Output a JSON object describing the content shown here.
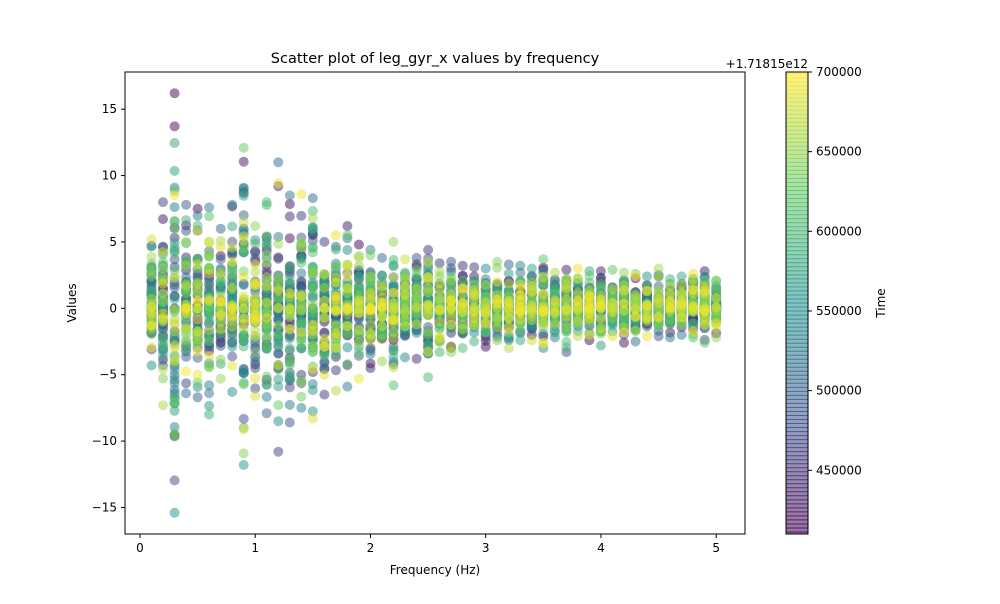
{
  "chart_data": {
    "type": "scatter",
    "title": "Scatter plot of leg_gyr_x values by frequency",
    "xlabel": "Frequency (Hz)",
    "ylabel": "Values",
    "xlim": [
      -0.13,
      5.25
    ],
    "ylim": [
      -17,
      17.8
    ],
    "x_ticks": [
      0,
      1,
      2,
      3,
      4,
      5
    ],
    "x_tick_labels": [
      "0",
      "1",
      "2",
      "3",
      "4",
      "5"
    ],
    "y_ticks": [
      -15,
      -10,
      -5,
      0,
      5,
      10,
      15
    ],
    "y_tick_labels": [
      "−15",
      "−10",
      "−5",
      "0",
      "5",
      "10",
      "15"
    ],
    "colorbar": {
      "label": "Time",
      "offset_text": "+1.71815e12",
      "range": [
        410000,
        700000
      ],
      "ticks": [
        450000,
        500000,
        550000,
        600000,
        650000,
        700000
      ],
      "tick_labels": [
        "450000",
        "500000",
        "550000",
        "600000",
        "650000",
        "700000"
      ],
      "colormap": "viridis",
      "alpha": 0.5
    },
    "grid": false,
    "frequencies": [
      0.1,
      0.2,
      0.3,
      0.4,
      0.5,
      0.6,
      0.7,
      0.8,
      0.9,
      1.0,
      1.1,
      1.2,
      1.3,
      1.4,
      1.5,
      1.6,
      1.7,
      1.8,
      1.9,
      2.0,
      2.1,
      2.2,
      2.3,
      2.4,
      2.5,
      2.6,
      2.7,
      2.8,
      2.9,
      3.0,
      3.1,
      3.2,
      3.3,
      3.4,
      3.5,
      3.6,
      3.7,
      3.8,
      3.9,
      4.0,
      4.1,
      4.2,
      4.3,
      4.4,
      4.5,
      4.6,
      4.7,
      4.8,
      4.9,
      5.0
    ],
    "value_max": [
      5.2,
      8.0,
      16.2,
      7.8,
      7.5,
      7.6,
      6.0,
      7.8,
      12.1,
      6.2,
      8.0,
      11.0,
      8.5,
      8.6,
      8.3,
      5.0,
      5.5,
      6.2,
      4.8,
      4.4,
      3.8,
      5.0,
      3.7,
      3.8,
      4.4,
      3.4,
      3.5,
      3.2,
      3.1,
      3.0,
      3.5,
      3.3,
      3.2,
      3.0,
      3.7,
      2.7,
      2.9,
      3.0,
      2.8,
      2.8,
      2.9,
      2.7,
      2.6,
      2.4,
      3.0,
      2.2,
      2.4,
      2.6,
      2.8,
      2.1
    ],
    "value_min": [
      -4.3,
      -7.3,
      -15.4,
      -6.4,
      -6.7,
      -8.0,
      -5.3,
      -6.3,
      -11.8,
      -6.6,
      -7.9,
      -10.8,
      -8.6,
      -7.5,
      -8.3,
      -6.5,
      -6.2,
      -5.9,
      -5.3,
      -4.5,
      -4.0,
      -5.8,
      -3.7,
      -3.8,
      -5.2,
      -3.3,
      -3.3,
      -3.0,
      -2.5,
      -2.9,
      -2.4,
      -3.0,
      -2.4,
      -2.4,
      -3.0,
      -2.2,
      -3.3,
      -2.1,
      -2.4,
      -2.8,
      -2.1,
      -2.6,
      -2.5,
      -2.1,
      -2.1,
      -2.2,
      -2.0,
      -2.2,
      -2.6,
      -2.2
    ]
  }
}
